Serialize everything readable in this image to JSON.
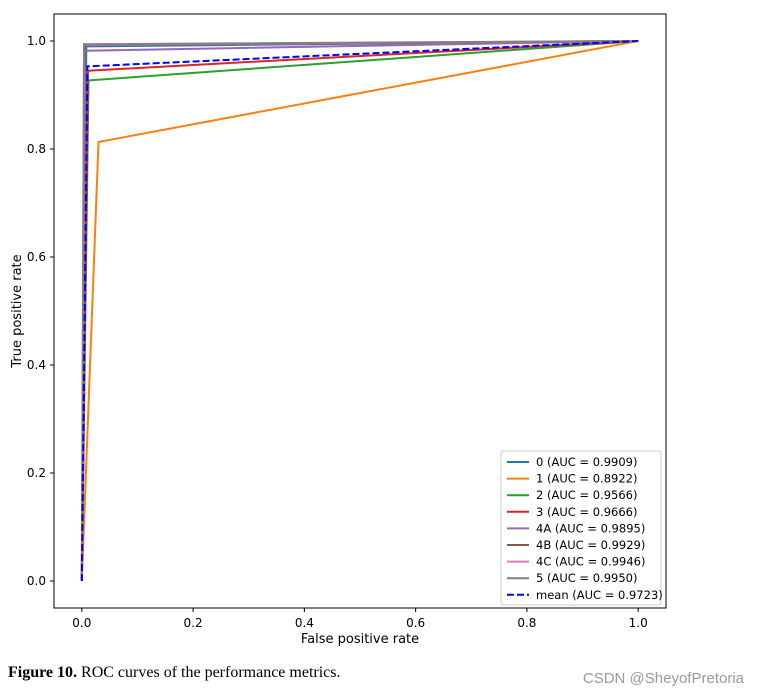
{
  "chart_data": {
    "type": "line",
    "title": "",
    "xlabel": "False positive rate",
    "ylabel": "True positive rate",
    "xlim": [
      -0.05,
      1.05
    ],
    "ylim": [
      -0.05,
      1.05
    ],
    "xticks": [
      0.0,
      0.2,
      0.4,
      0.6,
      0.8,
      1.0
    ],
    "yticks": [
      0.0,
      0.2,
      0.4,
      0.6,
      0.8,
      1.0
    ],
    "xtick_labels": [
      "0.0",
      "0.2",
      "0.4",
      "0.6",
      "0.8",
      "1.0"
    ],
    "ytick_labels": [
      "0.0",
      "0.2",
      "0.4",
      "0.6",
      "0.8",
      "1.0"
    ],
    "grid": false,
    "legend_position": "lower-right",
    "series": [
      {
        "name": "0 (AUC = 0.9909)",
        "color": "#1f77b4",
        "dash": "solid",
        "x": [
          0.0,
          0.008,
          1.0
        ],
        "y": [
          0.0,
          0.99,
          1.0
        ]
      },
      {
        "name": "1 (AUC = 0.8922)",
        "color": "#ff7f0e",
        "dash": "solid",
        "x": [
          0.0,
          0.03,
          1.0
        ],
        "y": [
          0.0,
          0.813,
          1.0
        ]
      },
      {
        "name": "2 (AUC = 0.9566)",
        "color": "#2ca02c",
        "dash": "solid",
        "x": [
          0.0,
          0.012,
          1.0
        ],
        "y": [
          0.0,
          0.927,
          1.0
        ]
      },
      {
        "name": "3 (AUC = 0.9666)",
        "color": "#d62728",
        "dash": "solid",
        "x": [
          0.0,
          0.011,
          1.0
        ],
        "y": [
          0.0,
          0.945,
          1.0
        ]
      },
      {
        "name": "4A (AUC = 0.9895)",
        "color": "#9467bd",
        "dash": "solid",
        "x": [
          0.0,
          0.006,
          1.0
        ],
        "y": [
          0.0,
          0.982,
          1.0
        ]
      },
      {
        "name": "4B (AUC = 0.9929)",
        "color": "#8c564b",
        "dash": "solid",
        "x": [
          0.0,
          0.005,
          1.0
        ],
        "y": [
          0.0,
          0.992,
          1.0
        ]
      },
      {
        "name": "4C (AUC = 0.9946)",
        "color": "#e377c2",
        "dash": "solid",
        "x": [
          0.0,
          0.004,
          1.0
        ],
        "y": [
          0.0,
          0.993,
          1.0
        ]
      },
      {
        "name": "5 (AUC = 0.9950)",
        "color": "#7f7f7f",
        "dash": "solid",
        "x": [
          0.0,
          0.004,
          1.0
        ],
        "y": [
          0.0,
          0.994,
          1.0
        ]
      },
      {
        "name": "mean (AUC = 0.9723)",
        "color": "#0000ff",
        "dash": "dashed",
        "x": [
          0.0,
          0.01,
          1.0
        ],
        "y": [
          0.0,
          0.953,
          1.0
        ]
      }
    ]
  },
  "caption": {
    "label": "Figure 10.",
    "text": " ROC curves of the performance metrics."
  },
  "watermark": "CSDN @SheyofPretoria"
}
